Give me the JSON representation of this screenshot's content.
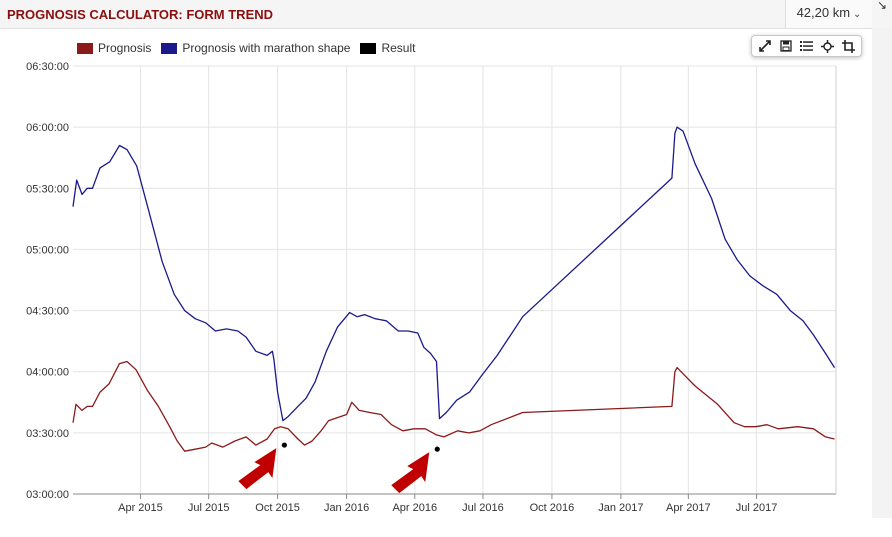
{
  "header": {
    "title": "PROGNOSIS CALCULATOR: FORM TREND",
    "distance": "42,20 km"
  },
  "colors": {
    "prognosis": "#8b1a1a",
    "marathon": "#1a1a8c",
    "result": "#000000",
    "arrow": "#c00000",
    "grid": "#e4e4e4"
  },
  "toolbar": {
    "icons": [
      "expand-icon",
      "save-icon",
      "list-icon",
      "crosshair-icon",
      "crop-icon"
    ]
  },
  "chart_data": {
    "type": "line",
    "xlabel": "",
    "ylabel": "",
    "x_start": "2015-01-01",
    "x_end": "2017-10-15",
    "ylim": [
      "03:00:00",
      "06:30:00"
    ],
    "y_ticks": [
      "03:00:00",
      "03:30:00",
      "04:00:00",
      "04:30:00",
      "05:00:00",
      "05:30:00",
      "06:00:00",
      "06:30:00"
    ],
    "x_ticks": [
      {
        "label": "Apr 2015",
        "date": "2015-04-01"
      },
      {
        "label": "Jul 2015",
        "date": "2015-07-01"
      },
      {
        "label": "Oct 2015",
        "date": "2015-10-01"
      },
      {
        "label": "Jan 2016",
        "date": "2016-01-01"
      },
      {
        "label": "Apr 2016",
        "date": "2016-04-01"
      },
      {
        "label": "Jul 2016",
        "date": "2016-07-01"
      },
      {
        "label": "Oct 2016",
        "date": "2016-10-01"
      },
      {
        "label": "Jan 2017",
        "date": "2017-01-01"
      },
      {
        "label": "Apr 2017",
        "date": "2017-04-01"
      },
      {
        "label": "Jul 2017",
        "date": "2017-07-01"
      }
    ],
    "grid": true,
    "legend": "top-left",
    "series": [
      {
        "name": "Prognosis",
        "color": "#8b1a1a",
        "points": [
          [
            "2015-01-01",
            "03:35:00"
          ],
          [
            "2015-01-05",
            "03:44:00"
          ],
          [
            "2015-01-13",
            "03:41:00"
          ],
          [
            "2015-01-20",
            "03:43:00"
          ],
          [
            "2015-01-27",
            "03:43:00"
          ],
          [
            "2015-02-06",
            "03:50:00"
          ],
          [
            "2015-02-18",
            "03:54:00"
          ],
          [
            "2015-03-04",
            "04:04:00"
          ],
          [
            "2015-03-14",
            "04:05:00"
          ],
          [
            "2015-03-26",
            "04:01:00"
          ],
          [
            "2015-04-10",
            "03:51:00"
          ],
          [
            "2015-04-25",
            "03:43:00"
          ],
          [
            "2015-05-10",
            "03:33:00"
          ],
          [
            "2015-05-20",
            "03:26:00"
          ],
          [
            "2015-05-30",
            "03:21:00"
          ],
          [
            "2015-06-13",
            "03:22:00"
          ],
          [
            "2015-06-27",
            "03:23:00"
          ],
          [
            "2015-07-05",
            "03:25:00"
          ],
          [
            "2015-07-20",
            "03:23:00"
          ],
          [
            "2015-08-05",
            "03:26:00"
          ],
          [
            "2015-08-20",
            "03:28:00"
          ],
          [
            "2015-09-02",
            "03:24:00"
          ],
          [
            "2015-09-17",
            "03:27:00"
          ],
          [
            "2015-09-27",
            "03:32:00"
          ],
          [
            "2015-10-05",
            "03:33:00"
          ],
          [
            "2015-10-15",
            "03:32:00"
          ],
          [
            "2015-10-28",
            "03:27:00"
          ],
          [
            "2015-11-06",
            "03:24:00"
          ],
          [
            "2015-11-16",
            "03:26:00"
          ],
          [
            "2015-11-28",
            "03:31:00"
          ],
          [
            "2015-12-08",
            "03:36:00"
          ],
          [
            "2015-12-16",
            "03:37:00"
          ],
          [
            "2016-01-01",
            "03:39:00"
          ],
          [
            "2016-01-08",
            "03:45:00"
          ],
          [
            "2016-01-18",
            "03:41:00"
          ],
          [
            "2016-02-01",
            "03:40:00"
          ],
          [
            "2016-02-16",
            "03:39:00"
          ],
          [
            "2016-03-01",
            "03:34:00"
          ],
          [
            "2016-03-16",
            "03:31:00"
          ],
          [
            "2016-03-31",
            "03:32:00"
          ],
          [
            "2016-04-15",
            "03:32:00"
          ],
          [
            "2016-04-30",
            "03:29:00"
          ],
          [
            "2016-05-10",
            "03:28:00"
          ],
          [
            "2016-05-28",
            "03:31:00"
          ],
          [
            "2016-06-12",
            "03:30:00"
          ],
          [
            "2016-06-27",
            "03:31:00"
          ],
          [
            "2016-07-12",
            "03:34:00"
          ],
          [
            "2016-08-23",
            "03:40:00"
          ],
          [
            "2017-03-10",
            "03:43:00"
          ],
          [
            "2017-03-14",
            "04:00:00"
          ],
          [
            "2017-03-17",
            "04:02:00"
          ],
          [
            "2017-03-25",
            "03:59:00"
          ],
          [
            "2017-04-10",
            "03:53:00"
          ],
          [
            "2017-05-10",
            "03:44:00"
          ],
          [
            "2017-06-01",
            "03:35:00"
          ],
          [
            "2017-06-15",
            "03:33:00"
          ],
          [
            "2017-06-30",
            "03:33:00"
          ],
          [
            "2017-07-15",
            "03:34:00"
          ],
          [
            "2017-07-30",
            "03:32:00"
          ],
          [
            "2017-08-25",
            "03:33:00"
          ],
          [
            "2017-09-15",
            "03:32:00"
          ],
          [
            "2017-10-01",
            "03:28:00"
          ],
          [
            "2017-10-13",
            "03:27:00"
          ]
        ]
      },
      {
        "name": "Prognosis with marathon shape",
        "color": "#1a1a8c",
        "points": [
          [
            "2015-01-01",
            "05:21:00"
          ],
          [
            "2015-01-06",
            "05:34:00"
          ],
          [
            "2015-01-13",
            "05:27:00"
          ],
          [
            "2015-01-20",
            "05:30:00"
          ],
          [
            "2015-01-27",
            "05:30:00"
          ],
          [
            "2015-02-06",
            "05:40:00"
          ],
          [
            "2015-02-19",
            "05:43:00"
          ],
          [
            "2015-03-04",
            "05:51:00"
          ],
          [
            "2015-03-14",
            "05:49:00"
          ],
          [
            "2015-03-27",
            "05:41:00"
          ],
          [
            "2015-04-12",
            "05:19:00"
          ],
          [
            "2015-04-30",
            "04:54:00"
          ],
          [
            "2015-05-16",
            "04:38:00"
          ],
          [
            "2015-05-30",
            "04:30:00"
          ],
          [
            "2015-06-13",
            "04:26:00"
          ],
          [
            "2015-06-27",
            "04:24:00"
          ],
          [
            "2015-07-10",
            "04:20:00"
          ],
          [
            "2015-07-25",
            "04:21:00"
          ],
          [
            "2015-08-09",
            "04:20:00"
          ],
          [
            "2015-08-20",
            "04:17:00"
          ],
          [
            "2015-09-02",
            "04:10:00"
          ],
          [
            "2015-09-17",
            "04:08:00"
          ],
          [
            "2015-09-24",
            "04:10:00"
          ],
          [
            "2015-09-26",
            "04:06:00"
          ],
          [
            "2015-10-01",
            "03:50:00"
          ],
          [
            "2015-10-08",
            "03:36:00"
          ],
          [
            "2015-10-15",
            "03:38:00"
          ],
          [
            "2015-10-28",
            "03:43:00"
          ],
          [
            "2015-11-08",
            "03:47:00"
          ],
          [
            "2015-11-20",
            "03:55:00"
          ],
          [
            "2015-12-05",
            "04:10:00"
          ],
          [
            "2015-12-20",
            "04:22:00"
          ],
          [
            "2016-01-05",
            "04:29:00"
          ],
          [
            "2016-01-15",
            "04:27:00"
          ],
          [
            "2016-01-25",
            "04:28:00"
          ],
          [
            "2016-02-08",
            "04:26:00"
          ],
          [
            "2016-02-23",
            "04:25:00"
          ],
          [
            "2016-03-10",
            "04:20:00"
          ],
          [
            "2016-03-23",
            "04:20:00"
          ],
          [
            "2016-04-05",
            "04:19:00"
          ],
          [
            "2016-04-13",
            "04:12:00"
          ],
          [
            "2016-04-22",
            "04:09:00"
          ],
          [
            "2016-04-30",
            "04:05:00"
          ],
          [
            "2016-05-04",
            "03:37:00"
          ],
          [
            "2016-05-13",
            "03:40:00"
          ],
          [
            "2016-05-27",
            "03:46:00"
          ],
          [
            "2016-06-13",
            "03:50:00"
          ],
          [
            "2016-06-29",
            "03:58:00"
          ],
          [
            "2016-07-20",
            "04:08:00"
          ],
          [
            "2016-08-23",
            "04:27:00"
          ],
          [
            "2017-03-10",
            "05:35:00"
          ],
          [
            "2017-03-14",
            "05:57:00"
          ],
          [
            "2017-03-17",
            "06:00:00"
          ],
          [
            "2017-03-25",
            "05:58:00"
          ],
          [
            "2017-04-10",
            "05:42:00"
          ],
          [
            "2017-05-02",
            "05:25:00"
          ],
          [
            "2017-05-20",
            "05:05:00"
          ],
          [
            "2017-06-05",
            "04:55:00"
          ],
          [
            "2017-06-22",
            "04:47:00"
          ],
          [
            "2017-07-10",
            "04:42:00"
          ],
          [
            "2017-07-28",
            "04:38:00"
          ],
          [
            "2017-08-15",
            "04:30:00"
          ],
          [
            "2017-09-01",
            "04:25:00"
          ],
          [
            "2017-09-15",
            "04:18:00"
          ],
          [
            "2017-10-01",
            "04:09:00"
          ],
          [
            "2017-10-13",
            "04:02:00"
          ]
        ]
      },
      {
        "name": "Result",
        "color": "#000000",
        "points": [
          [
            "2015-10-10",
            "03:24:00"
          ],
          [
            "2016-05-01",
            "03:22:00"
          ]
        ]
      }
    ]
  }
}
